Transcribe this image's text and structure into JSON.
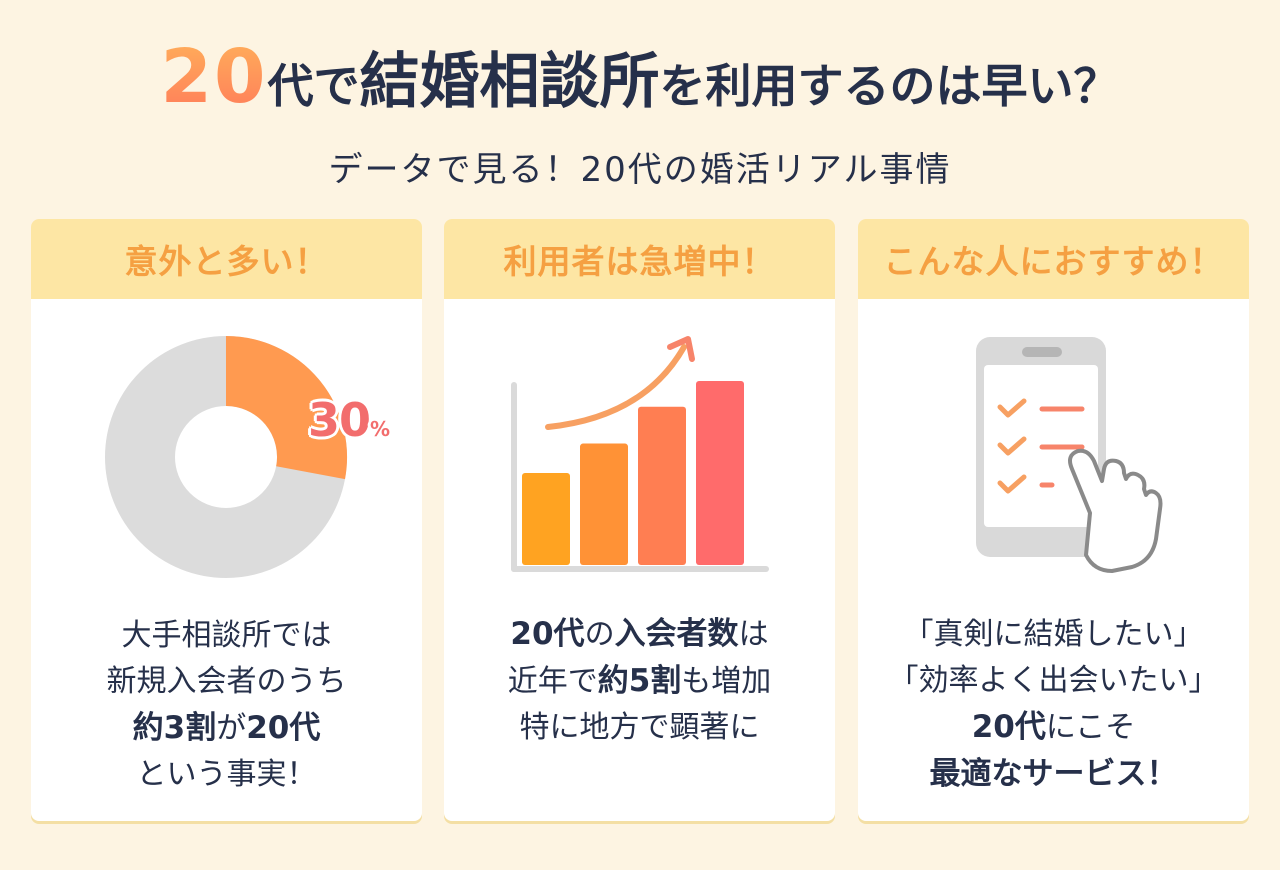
{
  "header": {
    "title_num": "20",
    "title_part1": "代で",
    "title_part2": "結婚相談所",
    "title_part3": "を利用するのは早い？",
    "subtitle": "データで見る！20代の婚活リアル事情"
  },
  "cards": [
    {
      "heading": "意外と多い！",
      "lines": [
        [
          {
            "t": "大手相談所では",
            "bold": false
          }
        ],
        [
          {
            "t": "新規入会者のうち",
            "bold": false
          }
        ],
        [
          {
            "t": "約3割",
            "bold": true
          },
          {
            "t": "が",
            "bold": false
          },
          {
            "t": "20代",
            "bold": true
          }
        ],
        [
          {
            "t": "という事実！",
            "bold": false
          }
        ]
      ],
      "donut": {
        "percent_value": "30",
        "percent_unit": "%",
        "share": 0.3,
        "accent": "#ff9a50",
        "base": "#dcdcdc"
      }
    },
    {
      "heading": "利用者は急増中！",
      "lines": [
        [
          {
            "t": "20代",
            "bold": true
          },
          {
            "t": "の",
            "bold": false
          },
          {
            "t": "入会者数",
            "bold": true
          },
          {
            "t": "は",
            "bold": false
          }
        ],
        [
          {
            "t": "近年で",
            "bold": false
          },
          {
            "t": "約5割",
            "bold": true
          },
          {
            "t": "も増加",
            "bold": false
          }
        ],
        [
          {
            "t": "特に地方で顕著に",
            "bold": false
          }
        ]
      ],
      "bars": {
        "values": [
          0.5,
          0.66,
          0.86,
          1.0
        ],
        "colors": [
          "#ffa321",
          "#ff9236",
          "#ff7e52",
          "#ff6b6b"
        ]
      }
    },
    {
      "heading": "こんな人におすすめ！",
      "lines": [
        [
          {
            "t": "「真剣に結婚したい」",
            "bold": false
          }
        ],
        [
          {
            "t": "「効率よく出会いたい」",
            "bold": false
          }
        ],
        [
          {
            "t": "20代",
            "bold": true
          },
          {
            "t": "にこそ",
            "bold": false
          }
        ],
        [
          {
            "t": "最適なサービス！",
            "bold": true
          }
        ]
      ],
      "icons": [
        "smartphone-icon",
        "checkmark-icon",
        "pointing-hand-icon"
      ]
    }
  ]
}
